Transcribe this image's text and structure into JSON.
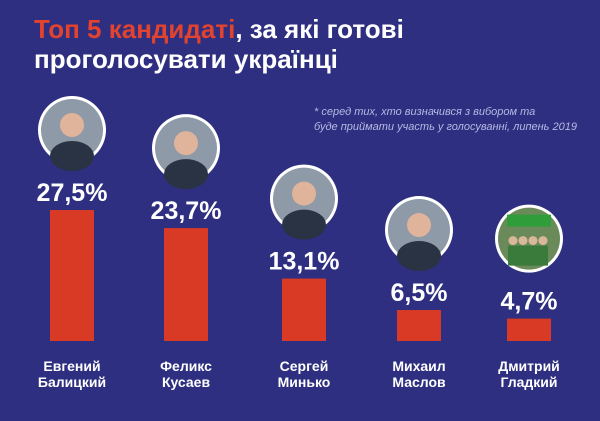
{
  "header": {
    "title_accent": "Топ 5 кандидаті",
    "title_rest": ", за які готові",
    "title_line2": "проголосувати українці"
  },
  "note": {
    "line1": "* серед тих, хто визначився з вибором та",
    "line2": "буде приймати участь у голосуванні, липень 2019"
  },
  "colors": {
    "background": "#2e2f80",
    "bar": "#d93a26",
    "accent": "#e2432e",
    "text": "#ffffff"
  },
  "chart_data": {
    "type": "bar",
    "title": "Топ 5 кандидаті, за які готові проголосувати українці",
    "categories": [
      {
        "first": "Евгений",
        "last": "Балицкий"
      },
      {
        "first": "Феликс",
        "last": "Кусаев"
      },
      {
        "first": "Сергей",
        "last": "Минько"
      },
      {
        "first": "Михаил",
        "last": "Маслов"
      },
      {
        "first": "Дмитрий",
        "last": "Гладкий"
      }
    ],
    "values": [
      27.5,
      23.7,
      13.1,
      6.5,
      4.7
    ],
    "labels": [
      "27,5%",
      "23,7%",
      "13,1%",
      "6,5%",
      "4,7%"
    ],
    "ylim": [
      0,
      27.5
    ],
    "xlabel": "",
    "ylabel": "",
    "photo_icons": [
      "person-photo-icon",
      "person-photo-icon",
      "person-photo-icon",
      "person-photo-icon",
      "campaign-photo-icon"
    ]
  }
}
